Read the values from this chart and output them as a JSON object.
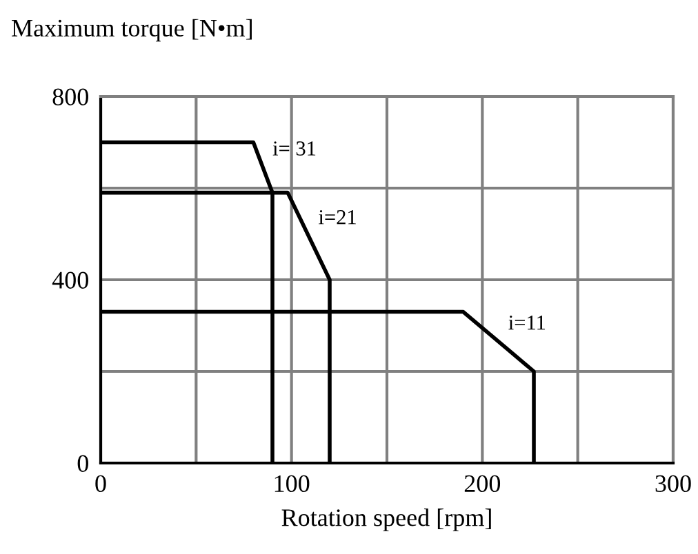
{
  "chart_data": {
    "type": "line",
    "ylabel": "Maximum torque [N•m]",
    "xlabel": "Rotation speed [rpm]",
    "series": [
      {
        "name": "i= 31",
        "color": "#000000",
        "x": [
          0,
          80,
          90,
          90
        ],
        "values": [
          700,
          700,
          590,
          0
        ]
      },
      {
        "name": "i=21",
        "color": "#000000",
        "x": [
          0,
          98,
          120,
          120
        ],
        "values": [
          590,
          590,
          400,
          0
        ]
      },
      {
        "name": "i=11",
        "color": "#000000",
        "x": [
          0,
          190,
          227,
          227
        ],
        "values": [
          330,
          330,
          200,
          0
        ]
      }
    ],
    "xlim": [
      0,
      300
    ],
    "ylim": [
      0,
      800
    ],
    "xticks": [
      0,
      {
        "value": 50,
        "label": null
      },
      100,
      {
        "value": 150,
        "label": null
      },
      200,
      {
        "value": 250,
        "label": null
      },
      300
    ],
    "yticks": [
      0,
      {
        "value": 200,
        "label": null
      },
      400,
      {
        "value": 600,
        "label": null
      },
      800
    ],
    "grid": true,
    "marker": "none",
    "line_style": "solid"
  }
}
